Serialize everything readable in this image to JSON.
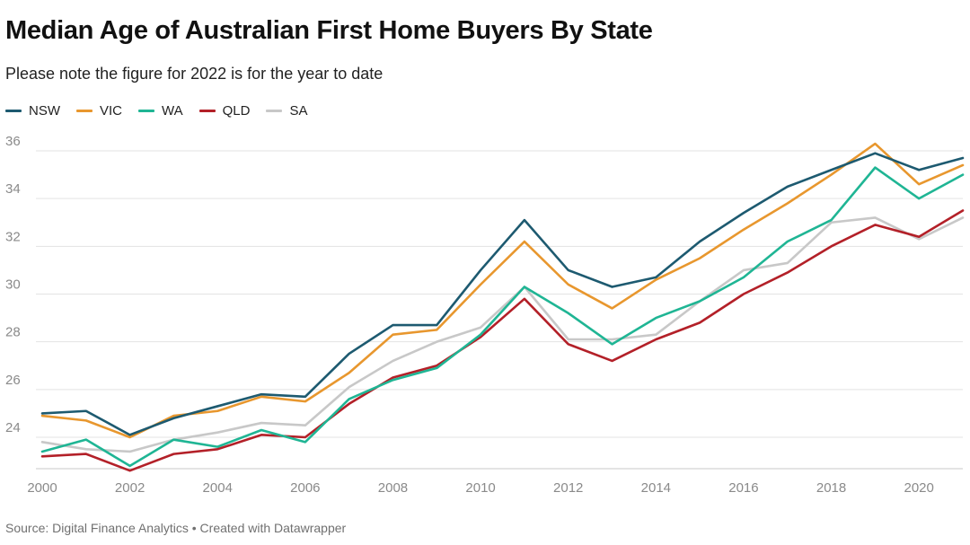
{
  "chart_data": {
    "type": "line",
    "title": "Median Age of Australian First Home Buyers By State",
    "subtitle": "Please note the figure for 2022 is for the year to date",
    "source": "Source: Digital Finance Analytics • Created with Datawrapper",
    "xlabel": "",
    "ylabel": "",
    "x": [
      2000,
      2001,
      2002,
      2003,
      2004,
      2005,
      2006,
      2007,
      2008,
      2009,
      2010,
      2011,
      2012,
      2013,
      2014,
      2015,
      2016,
      2017,
      2018,
      2019,
      2020,
      2021
    ],
    "xticks": [
      2000,
      2002,
      2004,
      2006,
      2008,
      2010,
      2012,
      2014,
      2016,
      2018,
      2020
    ],
    "yticks": [
      24,
      26,
      28,
      30,
      32,
      34,
      36
    ],
    "ylim": [
      23,
      36.5
    ],
    "grid": "horizontal",
    "legend_position": "top-left",
    "series": [
      {
        "name": "NSW",
        "color": "#1d5a70",
        "values": [
          25.0,
          25.1,
          24.1,
          24.8,
          25.3,
          25.8,
          25.7,
          27.5,
          28.7,
          28.7,
          31.0,
          33.1,
          31.0,
          30.3,
          30.7,
          32.2,
          33.4,
          34.5,
          35.2,
          35.9,
          35.2,
          35.7
        ]
      },
      {
        "name": "VIC",
        "color": "#e8972e",
        "values": [
          24.9,
          24.7,
          24.0,
          24.9,
          25.1,
          25.7,
          25.5,
          26.7,
          28.3,
          28.5,
          30.4,
          32.2,
          30.4,
          29.4,
          30.6,
          31.5,
          32.7,
          33.8,
          35.0,
          36.3,
          34.6,
          35.4
        ]
      },
      {
        "name": "WA",
        "color": "#1fb594",
        "values": [
          23.4,
          23.9,
          22.8,
          23.9,
          23.6,
          24.3,
          23.8,
          25.6,
          26.4,
          26.9,
          28.3,
          30.3,
          29.2,
          27.9,
          29.0,
          29.7,
          30.7,
          32.2,
          33.1,
          35.3,
          34.0,
          35.0
        ]
      },
      {
        "name": "QLD",
        "color": "#b32028",
        "values": [
          23.2,
          23.3,
          22.6,
          23.3,
          23.5,
          24.1,
          24.0,
          25.4,
          26.5,
          27.0,
          28.2,
          29.8,
          27.9,
          27.2,
          28.1,
          28.8,
          30.0,
          30.9,
          32.0,
          32.9,
          32.4,
          33.5
        ]
      },
      {
        "name": "SA",
        "color": "#c8c8c8",
        "values": [
          23.8,
          23.5,
          23.4,
          23.9,
          24.2,
          24.6,
          24.5,
          26.1,
          27.2,
          28.0,
          28.6,
          30.3,
          28.1,
          28.1,
          28.3,
          29.7,
          31.0,
          31.3,
          33.0,
          33.2,
          32.3,
          33.2
        ]
      }
    ]
  }
}
